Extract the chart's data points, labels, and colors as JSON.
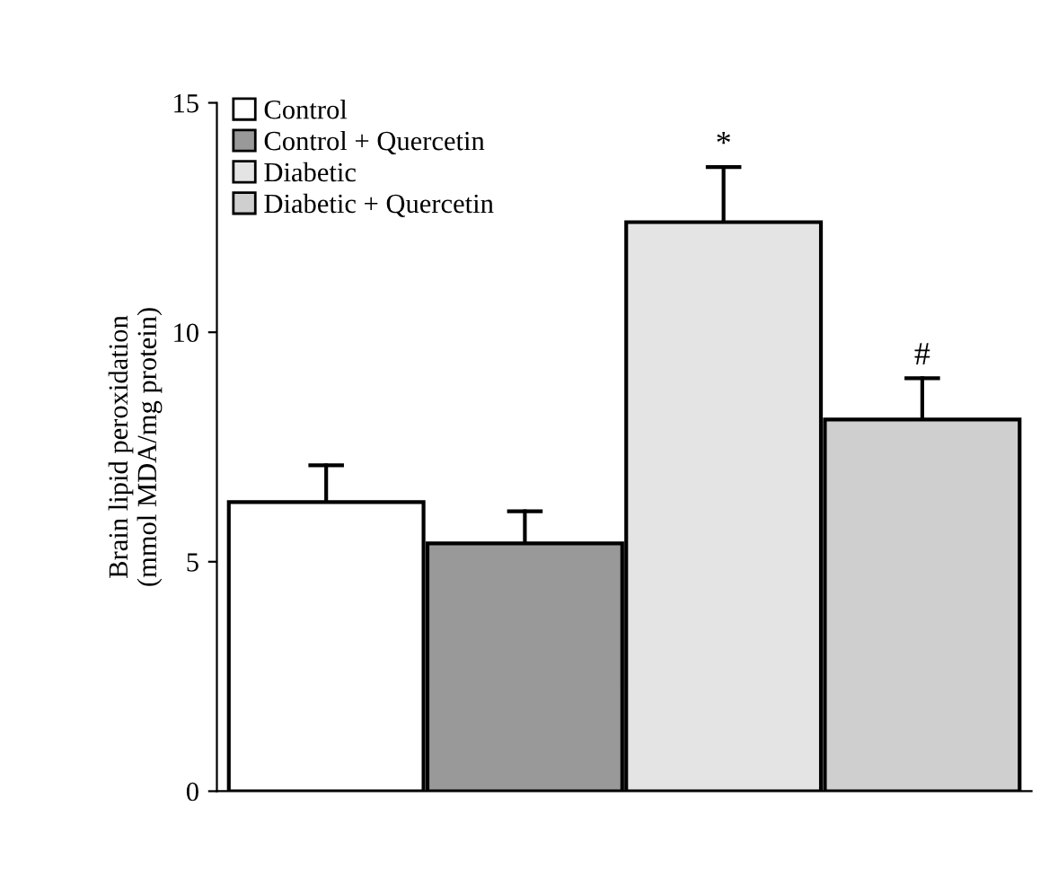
{
  "chart_data": {
    "type": "bar",
    "ylabel": "Brain lipid peroxidation\n(mmol MDA/mg protein)",
    "categories": [
      null,
      null,
      null,
      null
    ],
    "series": [
      {
        "name": "Control",
        "color": "#ffffff",
        "values": [
          6.3,
          null,
          null,
          null
        ],
        "errors": [
          [
            6.3,
            7.1
          ],
          null,
          null,
          null
        ]
      },
      {
        "name": "Control + Quercetin",
        "color": "#999999",
        "values": [
          null,
          5.4,
          null,
          null
        ],
        "errors": [
          null,
          [
            5.4,
            6.1
          ],
          null,
          null
        ]
      },
      {
        "name": "Diabetic",
        "color": "#e4e4e4",
        "values": [
          null,
          null,
          12.4,
          null
        ],
        "errors": [
          null,
          null,
          [
            12.4,
            13.6
          ],
          null
        ]
      },
      {
        "name": "Diabetic + Quercetin",
        "color": "#cfcfcf",
        "values": [
          null,
          null,
          null,
          8.1
        ],
        "errors": [
          null,
          null,
          null,
          [
            8.1,
            9.0
          ]
        ]
      }
    ],
    "annotations": [
      {
        "text": "*",
        "y": 13.6
      },
      {
        "text": "#",
        "y": 9.0
      }
    ],
    "ylim": [
      0,
      15
    ],
    "yticks": [
      0,
      5,
      10,
      15
    ],
    "grid": false,
    "legend": "top left"
  }
}
